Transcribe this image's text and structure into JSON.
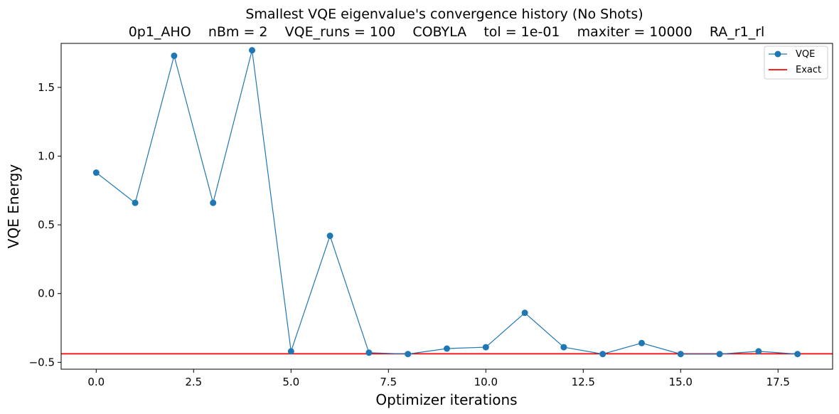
{
  "chart_data": {
    "type": "line",
    "title_line1": "Smallest VQE eigenvalue's convergence history (No Shots)",
    "title_line2": "0p1_AHO    nBm = 2    VQE_runs = 100    COBYLA    tol = 1e-01    maxiter = 10000    RA_r1_rl",
    "xlabel": "Optimizer iterations",
    "ylabel": "VQE Energy",
    "xlim": [
      -0.9,
      18.9
    ],
    "ylim": [
      -0.55,
      1.82
    ],
    "xticks": [
      0.0,
      2.5,
      5.0,
      7.5,
      10.0,
      12.5,
      15.0,
      17.5
    ],
    "xtick_labels": [
      "0.0",
      "2.5",
      "5.0",
      "7.5",
      "10.0",
      "12.5",
      "15.0",
      "17.5"
    ],
    "yticks": [
      -0.5,
      0.0,
      0.5,
      1.0,
      1.5
    ],
    "ytick_labels": [
      "−0.5",
      "0.0",
      "0.5",
      "1.0",
      "1.5"
    ],
    "grid": false,
    "legend_position": "top-right",
    "series": [
      {
        "name": "VQE",
        "color": "#1f77b4",
        "marker": "circle",
        "x": [
          0,
          1,
          2,
          3,
          4,
          5,
          6,
          7,
          8,
          9,
          10,
          11,
          12,
          13,
          14,
          15,
          16,
          17,
          18
        ],
        "y": [
          0.88,
          0.66,
          1.73,
          0.66,
          1.77,
          -0.42,
          0.42,
          -0.43,
          -0.44,
          -0.4,
          -0.39,
          -0.14,
          -0.39,
          -0.44,
          -0.36,
          -0.44,
          -0.44,
          -0.42,
          -0.44
        ]
      }
    ],
    "reference_lines": [
      {
        "name": "Exact",
        "color": "#ff0000",
        "y": -0.438
      }
    ]
  }
}
